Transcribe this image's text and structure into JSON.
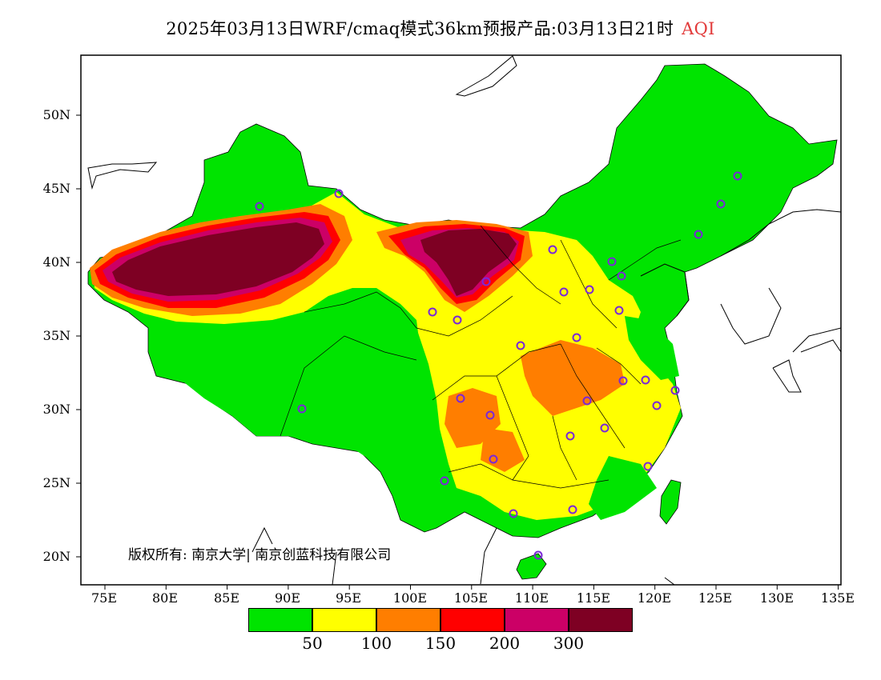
{
  "header": {
    "title": "2025年03月13日WRF/cmaq模式36km预报产品:03月13日21时",
    "variable": "AQI"
  },
  "axes": {
    "lat_labels": [
      "50N",
      "45N",
      "40N",
      "35N",
      "30N",
      "25N",
      "20N"
    ],
    "lon_labels": [
      "75E",
      "80E",
      "85E",
      "90E",
      "95E",
      "100E",
      "105E",
      "110E",
      "115E",
      "120E",
      "125E",
      "130E",
      "135E"
    ]
  },
  "credit": "版权所有: 南京大学| 南京创蓝科技有限公司",
  "legend": {
    "colors": [
      "#00e400",
      "#ffff00",
      "#ff7e00",
      "#ff0000",
      "#cc0066",
      "#7e0023"
    ],
    "values": [
      "50",
      "100",
      "150",
      "200",
      "300"
    ]
  }
}
